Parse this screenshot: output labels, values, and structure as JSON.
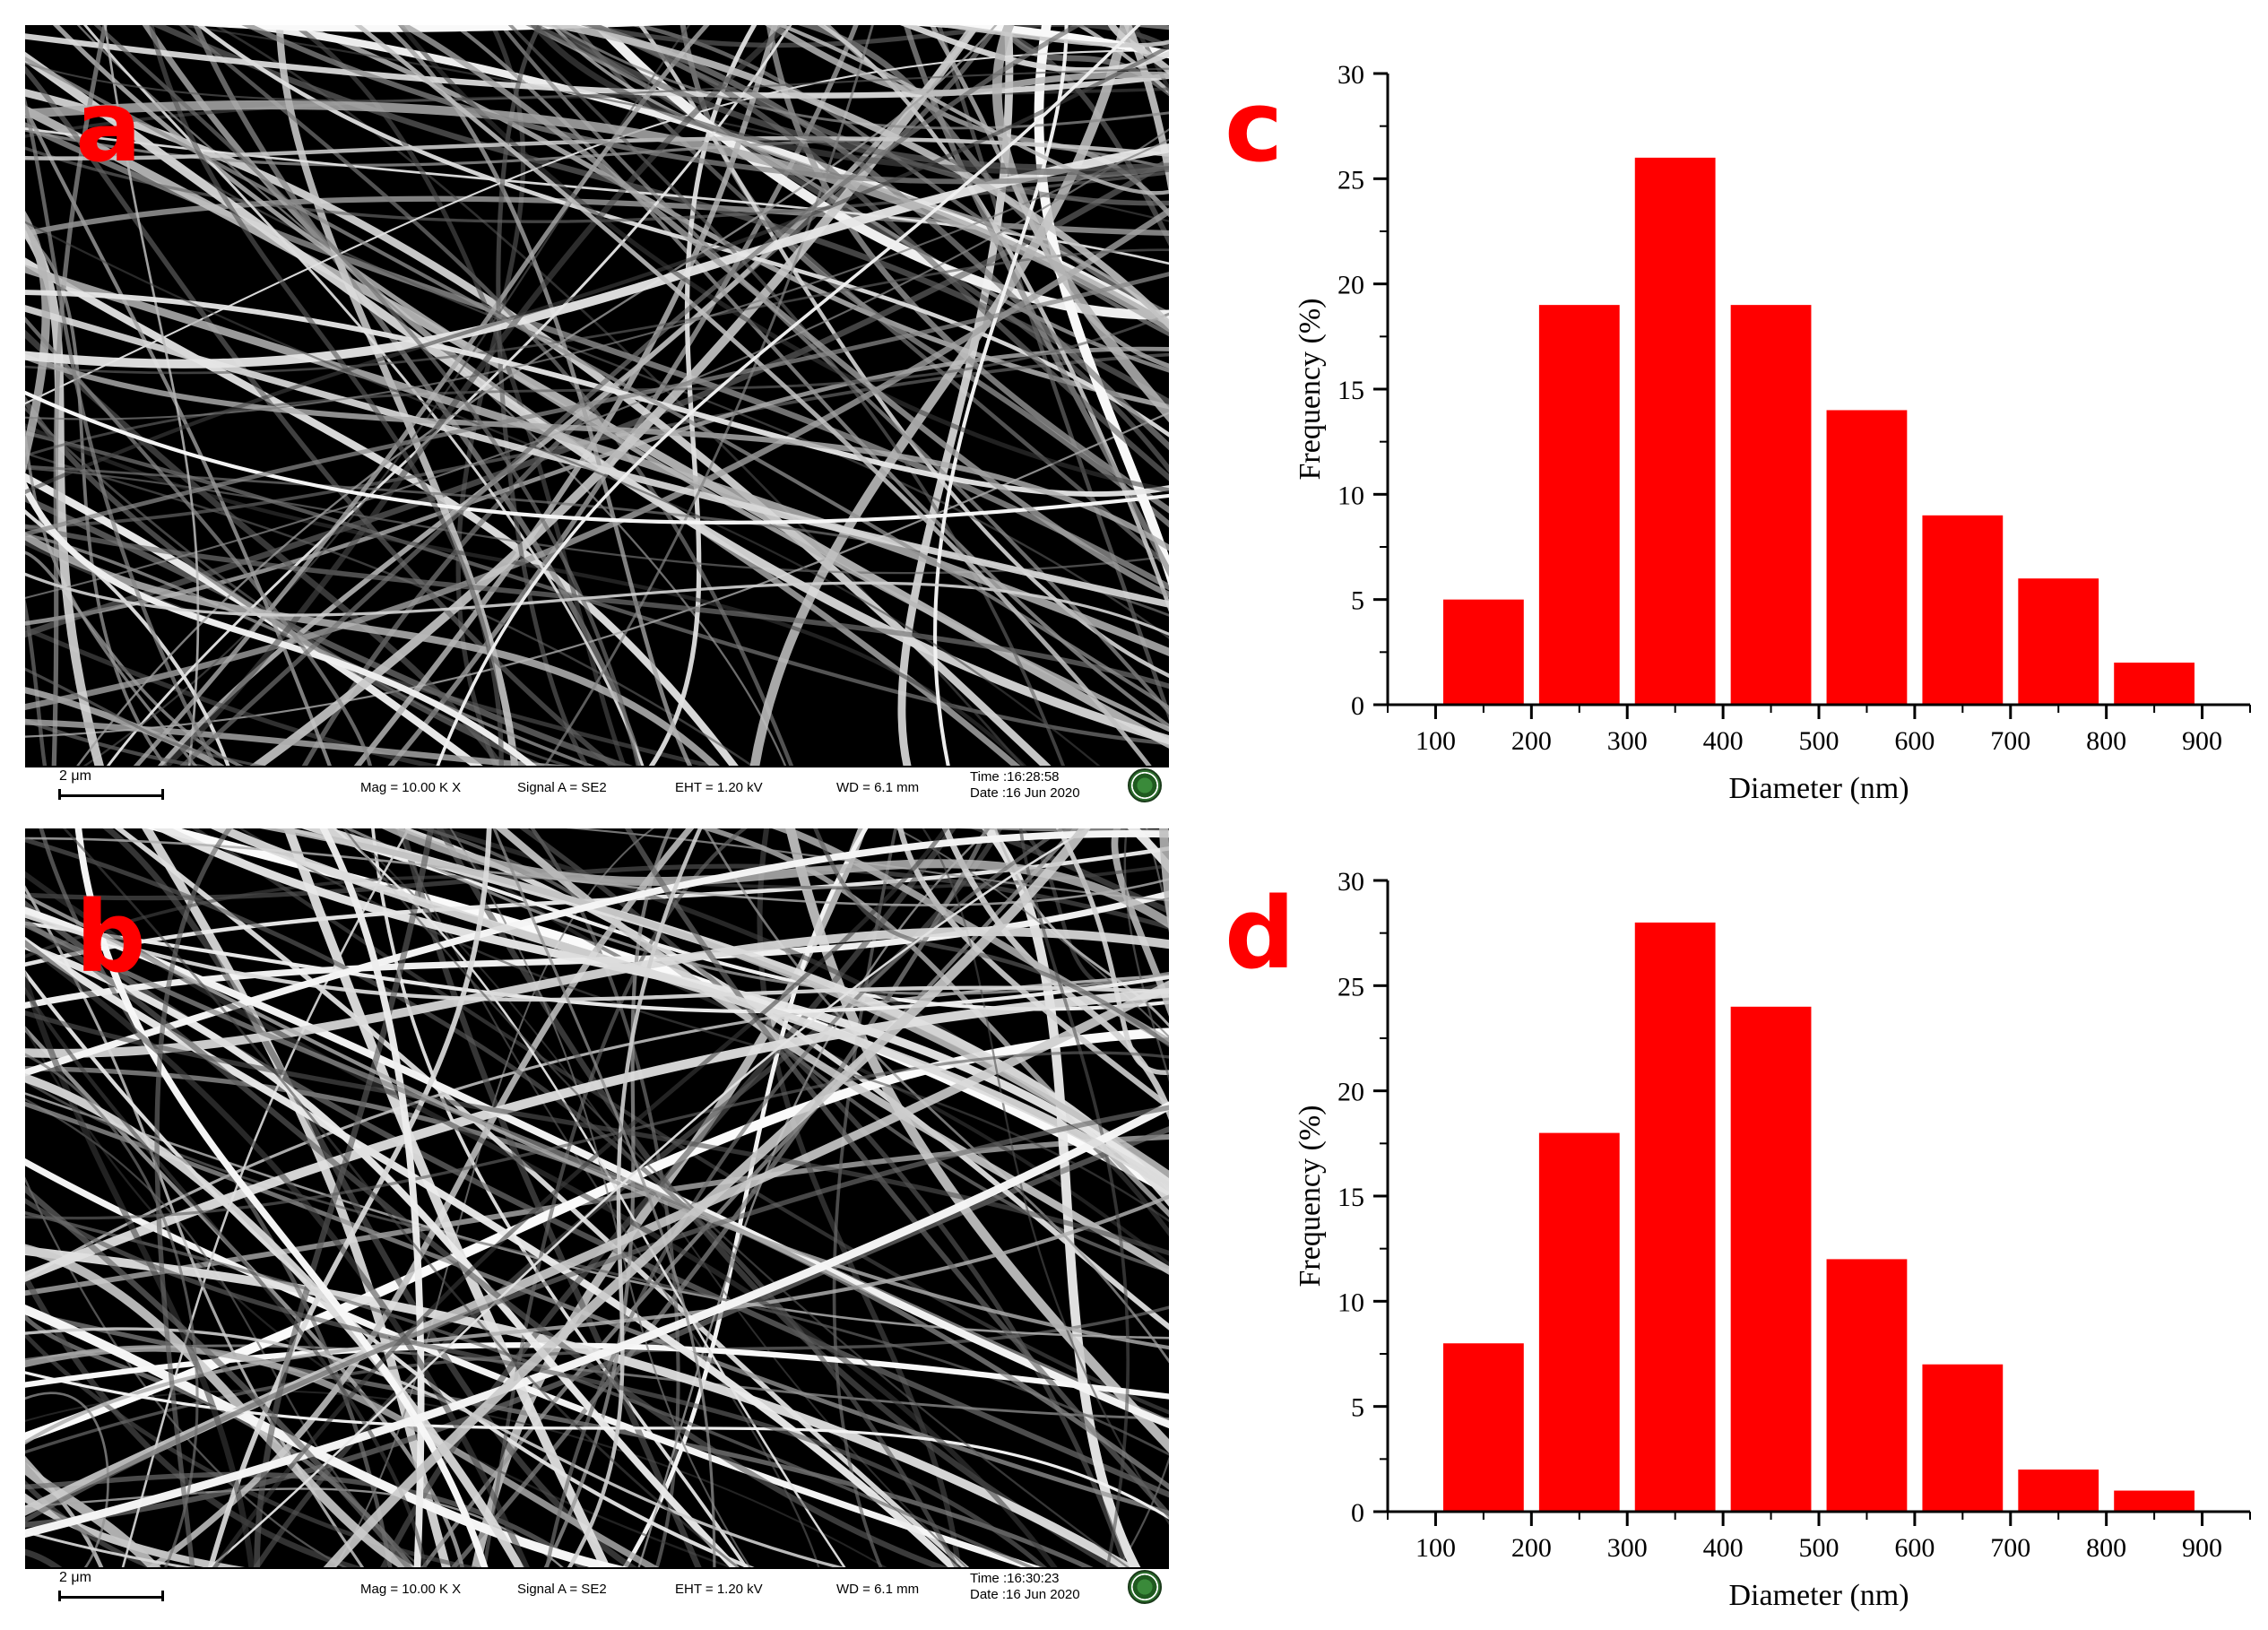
{
  "panels": {
    "a": {
      "label": "a",
      "info": {
        "scale": "2 μm",
        "mag": "Mag = 10.00 K X",
        "signal": "Signal A = SE2",
        "eht": "EHT = 1.20 kV",
        "wd": "WD = 6.1 mm",
        "time": "Time :16:28:58",
        "date": "Date :16 Jun 2020"
      }
    },
    "b": {
      "label": "b",
      "info": {
        "scale": "2 μm",
        "mag": "Mag = 10.00 K X",
        "signal": "Signal A = SE2",
        "eht": "EHT = 1.20 kV",
        "wd": "WD = 6.1 mm",
        "time": "Time :16:30:23",
        "date": "Date :16 Jun 2020"
      }
    },
    "c": {
      "label": "c"
    },
    "d": {
      "label": "d"
    }
  },
  "colors": {
    "bar": "#ff0000",
    "label": "#ff0000"
  },
  "chart_data": [
    {
      "id": "c",
      "type": "bar",
      "xlabel": "Diameter (nm)",
      "ylabel": "Frequency (%)",
      "xlim": [
        50,
        950
      ],
      "ylim": [
        0,
        30
      ],
      "xticks": [
        100,
        200,
        300,
        400,
        500,
        600,
        700,
        800,
        900
      ],
      "yticks": [
        0,
        5,
        10,
        15,
        20,
        25,
        30
      ],
      "x": [
        150,
        250,
        350,
        450,
        550,
        650,
        750,
        850
      ],
      "values": [
        5,
        19,
        26,
        19,
        14,
        9,
        6,
        2
      ]
    },
    {
      "id": "d",
      "type": "bar",
      "xlabel": "Diameter (nm)",
      "ylabel": "Frequency (%)",
      "xlim": [
        50,
        950
      ],
      "ylim": [
        0,
        30
      ],
      "xticks": [
        100,
        200,
        300,
        400,
        500,
        600,
        700,
        800,
        900
      ],
      "yticks": [
        0,
        5,
        10,
        15,
        20,
        25,
        30
      ],
      "x": [
        150,
        250,
        350,
        450,
        550,
        650,
        750,
        850
      ],
      "values": [
        8,
        18,
        28,
        24,
        12,
        7,
        2,
        1
      ]
    }
  ]
}
